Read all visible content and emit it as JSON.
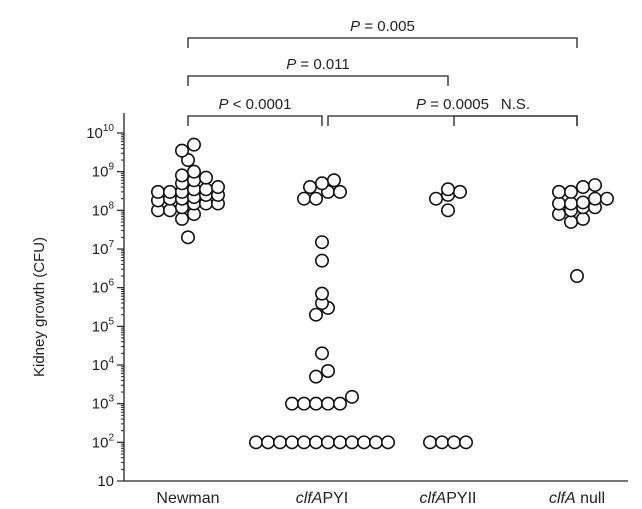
{
  "chart_data": {
    "type": "scatter",
    "ylabel": "Kidney growth (CFU)",
    "y_scale": "log10",
    "ylim": [
      10,
      10000000000
    ],
    "y_ticks": [
      {
        "value": 10,
        "base": "10",
        "exp": ""
      },
      {
        "value": 100,
        "base": "10",
        "exp": "2"
      },
      {
        "value": 1000,
        "base": "10",
        "exp": "3"
      },
      {
        "value": 10000,
        "base": "10",
        "exp": "4"
      },
      {
        "value": 100000,
        "base": "10",
        "exp": "5"
      },
      {
        "value": 1000000,
        "base": "10",
        "exp": "6"
      },
      {
        "value": 10000000,
        "base": "10",
        "exp": "7"
      },
      {
        "value": 100000000,
        "base": "10",
        "exp": "8"
      },
      {
        "value": 1000000000,
        "base": "10",
        "exp": "9"
      },
      {
        "value": 10000000000,
        "base": "10",
        "exp": "10"
      }
    ],
    "categories": [
      {
        "parts": [
          {
            "t": "Newman",
            "i": false
          }
        ]
      },
      {
        "parts": [
          {
            "t": "clfA",
            "i": true
          },
          {
            "t": "PYI",
            "i": false
          }
        ]
      },
      {
        "parts": [
          {
            "t": "clfA",
            "i": true
          },
          {
            "t": "PYII",
            "i": false
          }
        ]
      },
      {
        "parts": [
          {
            "t": "clfA",
            "i": true
          },
          {
            "t": " null",
            "i": false
          }
        ]
      }
    ],
    "series": [
      {
        "category": "Newman",
        "values": [
          500000000,
          400000000,
          350000000,
          300000000,
          300000000,
          250000000,
          250000000,
          200000000,
          200000000,
          150000000,
          150000000,
          120000000,
          100000000,
          100000000,
          80000000,
          60000000,
          1000000000,
          800000000,
          700000000,
          600000000,
          350000000,
          300000000,
          220000000,
          180000000,
          150000000,
          2000000000,
          3500000000,
          5000000000,
          20000000
        ]
      },
      {
        "category": "clfAPYI",
        "values": [
          600000000,
          500000000,
          400000000,
          300000000,
          300000000,
          200000000,
          200000000,
          15000000,
          5000000,
          700000,
          400000,
          300000,
          200000,
          20000,
          7000,
          5000,
          1500,
          1000,
          1000,
          1000,
          1000,
          1000,
          100,
          100,
          100,
          100,
          100,
          100,
          100,
          100,
          100,
          100,
          100,
          100
        ]
      },
      {
        "category": "clfAPYII",
        "values": [
          350000000,
          300000000,
          250000000,
          200000000,
          100000000,
          100,
          100,
          100,
          100
        ]
      },
      {
        "category": "clfA null",
        "values": [
          450000000,
          400000000,
          300000000,
          300000000,
          200000000,
          200000000,
          160000000,
          150000000,
          150000000,
          120000000,
          120000000,
          100000000,
          80000000,
          60000000,
          50000000,
          2000000
        ]
      }
    ],
    "comparisons": [
      {
        "from": 0,
        "to": 3,
        "label": {
          "p": "P",
          "rest": " = 0.005"
        }
      },
      {
        "from": 0,
        "to": 2,
        "label": {
          "p": "P",
          "rest": " = 0.011"
        }
      },
      {
        "from": 2,
        "to": 3,
        "label": {
          "p": "",
          "rest": "N.S."
        }
      },
      {
        "from": 0,
        "to": 1,
        "label": {
          "p": "P",
          "rest": " < 0.0001"
        }
      },
      {
        "from": 1,
        "to": 3,
        "label": {
          "p": "P",
          "rest": " = 0.0005"
        }
      }
    ]
  }
}
